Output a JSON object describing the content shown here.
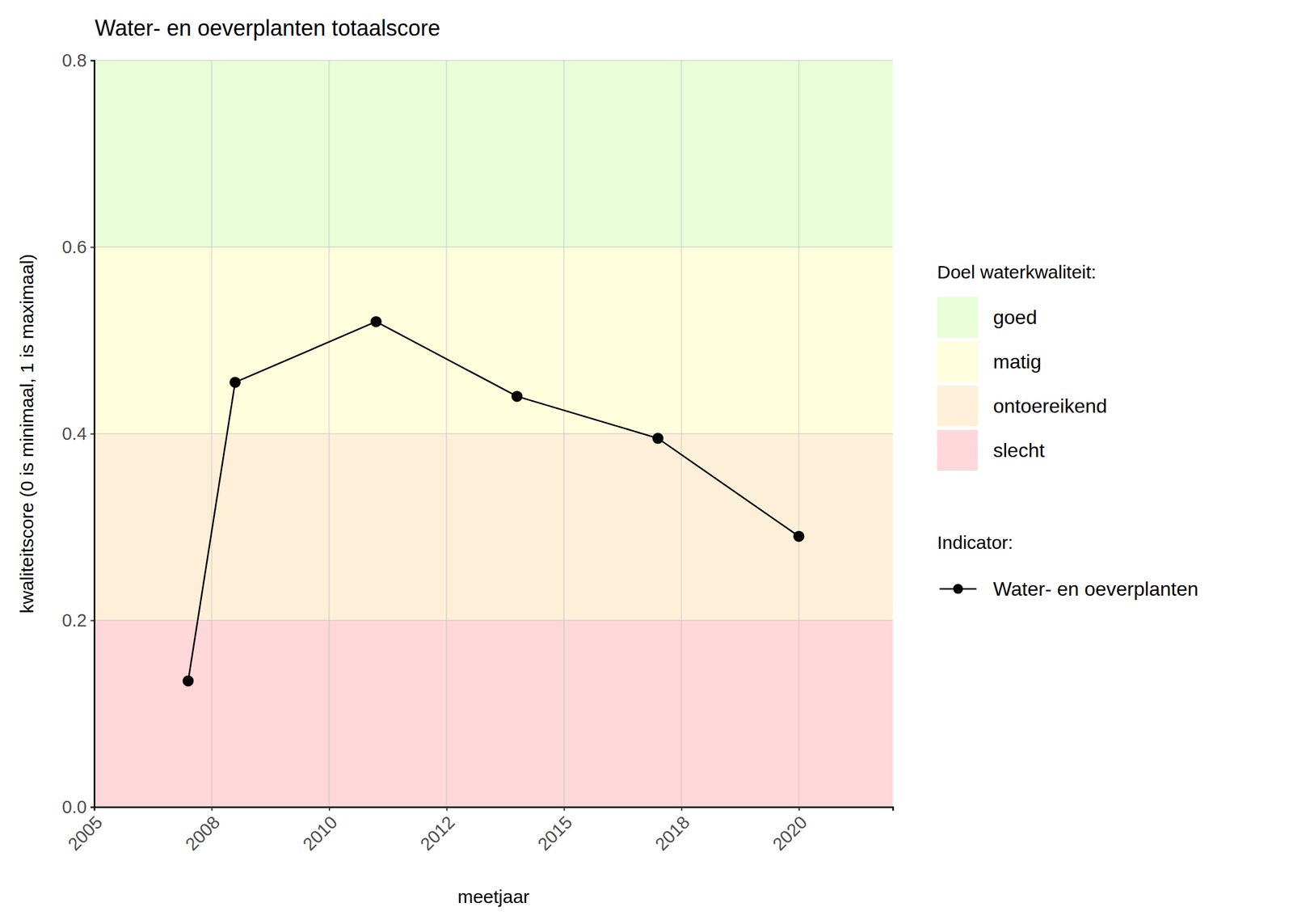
{
  "chart_data": {
    "type": "line",
    "title": "Water- en oeverplanten totaalscore",
    "x_label": "meetjaar",
    "y_label": "kwaliteitscore (0 is minimaal, 1 is maximaal)",
    "x": [
      2007,
      2008,
      2011,
      2014,
      2017,
      2020
    ],
    "series": [
      {
        "name": "Water- en oeverplanten",
        "color": "#000000",
        "marker": "circle",
        "line_style": "solid",
        "values": [
          0.135,
          0.455,
          0.52,
          0.44,
          0.395,
          0.29
        ]
      }
    ],
    "xlim": [
      2005,
      2022
    ],
    "xticks": [
      2005,
      {
        "value": 2007.5,
        "label": "2008"
      },
      2010,
      {
        "value": 2012.5,
        "label": "2012"
      },
      2015,
      {
        "value": 2017.5,
        "label": "2018"
      },
      2020
    ],
    "ylim": [
      0,
      0.8
    ],
    "yticks": [
      {
        "value": 0,
        "label": "0.0"
      },
      0.2,
      0.4,
      0.6,
      0.8
    ],
    "grid": true,
    "legend": "right",
    "bands": {
      "title": "Doel waterkwaliteit:",
      "items": [
        {
          "name": "goed",
          "color": "#e8fdd8",
          "from": 0.6,
          "to": 0.8
        },
        {
          "name": "matig",
          "color": "#fefedc",
          "from": 0.4,
          "to": 0.6
        },
        {
          "name": "ontoereikend",
          "color": "#fef0d8",
          "from": 0.2,
          "to": 0.4
        },
        {
          "name": "slecht",
          "color": "#fed7da",
          "from": 0,
          "to": 0.2
        }
      ]
    },
    "series_legend_title": "Indicator:"
  }
}
